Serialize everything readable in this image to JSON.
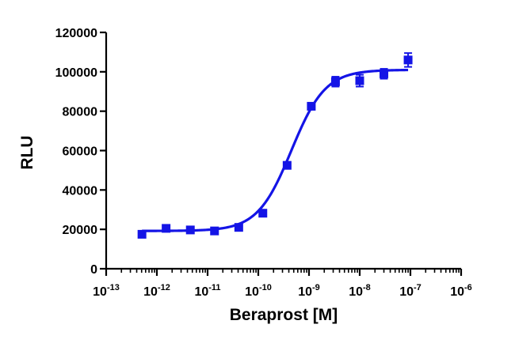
{
  "chart_data": {
    "type": "scatter",
    "title": "",
    "xlabel": "Beraprost [M]",
    "ylabel": "RLU",
    "xscale": "log",
    "xlim": [
      1e-13,
      1e-06
    ],
    "ylim": [
      0,
      120000
    ],
    "y_ticks": [
      0,
      20000,
      40000,
      60000,
      80000,
      100000,
      120000
    ],
    "y_tick_labels": [
      "0",
      "20000",
      "40000",
      "60000",
      "80000",
      "100000",
      "120000"
    ],
    "x_ticks": [
      {
        "base": "10",
        "exp": "-13",
        "value": 1e-13
      },
      {
        "base": "10",
        "exp": "-12",
        "value": 1e-12
      },
      {
        "base": "10",
        "exp": "-11",
        "value": 1e-11
      },
      {
        "base": "10",
        "exp": "-10",
        "value": 1e-10
      },
      {
        "base": "10",
        "exp": "-9",
        "value": 1e-09
      },
      {
        "base": "10",
        "exp": "-8",
        "value": 1e-08
      },
      {
        "base": "10",
        "exp": "-7",
        "value": 1e-07
      },
      {
        "base": "10",
        "exp": "-6",
        "value": 1e-06
      }
    ],
    "grid": false,
    "legend": "none",
    "series": [
      {
        "color": "#1414e6",
        "marker": "square",
        "points": [
          {
            "x": 5.08e-13,
            "y": 17500,
            "err": 600
          },
          {
            "x": 1.52e-12,
            "y": 20500,
            "err": 600
          },
          {
            "x": 4.57e-12,
            "y": 19700,
            "err": 500
          },
          {
            "x": 1.37e-11,
            "y": 19200,
            "err": 500
          },
          {
            "x": 4.12e-11,
            "y": 21000,
            "err": 600
          },
          {
            "x": 1.23e-10,
            "y": 28200,
            "err": 700
          },
          {
            "x": 3.7e-10,
            "y": 52500,
            "err": 900
          },
          {
            "x": 1.11e-09,
            "y": 82500,
            "err": 1000
          },
          {
            "x": 3.33e-09,
            "y": 95000,
            "err": 2500
          },
          {
            "x": 1e-08,
            "y": 95500,
            "err": 3000
          },
          {
            "x": 3e-08,
            "y": 99000,
            "err": 2500
          },
          {
            "x": 9e-08,
            "y": 106000,
            "err": 3500
          }
        ],
        "fit": {
          "model": "four-parameter logistic",
          "bottom": 19200,
          "top": 101000,
          "ec50": 4.5e-10,
          "hill": 1.3,
          "x_range": [
            5.08e-13,
            9e-08
          ]
        }
      }
    ]
  }
}
